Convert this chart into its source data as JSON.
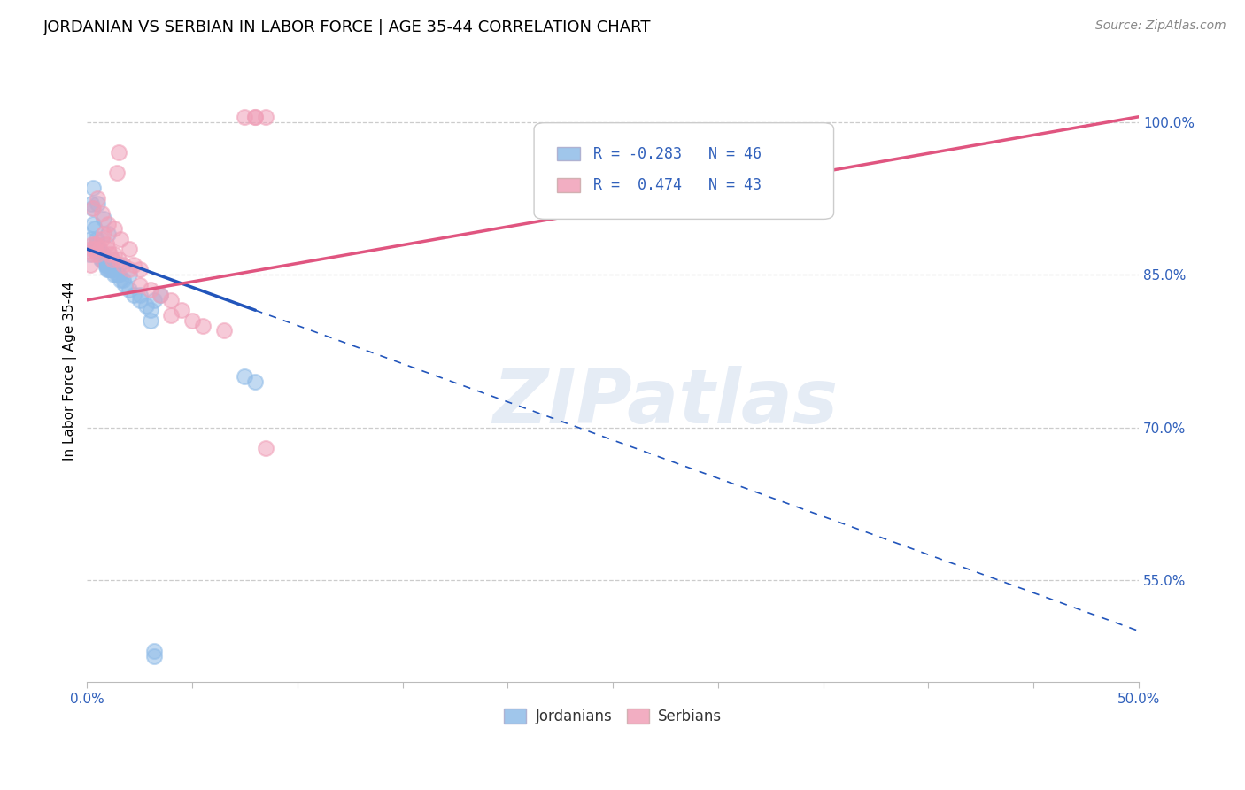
{
  "title": "JORDANIAN VS SERBIAN IN LABOR FORCE | AGE 35-44 CORRELATION CHART",
  "source": "Source: ZipAtlas.com",
  "ylabel_label": "In Labor Force | Age 35-44",
  "x_ticks_major": [
    0.0,
    5.0,
    10.0,
    15.0,
    20.0,
    25.0,
    30.0,
    35.0,
    40.0,
    45.0,
    50.0
  ],
  "x_tick_major_labels": [
    "0.0%",
    "",
    "",
    "",
    "",
    "",
    "",
    "",
    "",
    "",
    "50.0%"
  ],
  "y_ticks": [
    55.0,
    70.0,
    85.0,
    100.0
  ],
  "y_tick_labels": [
    "55.0%",
    "70.0%",
    "85.0%",
    "100.0%"
  ],
  "xlim": [
    0.0,
    50.0
  ],
  "ylim": [
    45.0,
    106.0
  ],
  "blue_R": -0.283,
  "blue_N": 46,
  "pink_R": 0.474,
  "pink_N": 43,
  "legend_label_blue": "Jordanians",
  "legend_label_pink": "Serbians",
  "blue_color": "#90bce8",
  "pink_color": "#f0a0b8",
  "blue_line_color": "#2255bb",
  "pink_line_color": "#e05580",
  "watermark_text": "ZIPatlas",
  "title_fontsize": 13,
  "axis_label_fontsize": 11,
  "tick_fontsize": 11,
  "source_fontsize": 10,
  "blue_scatter_x": [
    0.1,
    0.15,
    0.2,
    0.25,
    0.3,
    0.35,
    0.4,
    0.45,
    0.5,
    0.55,
    0.6,
    0.65,
    0.7,
    0.75,
    0.8,
    0.85,
    0.9,
    0.95,
    1.0,
    1.1,
    1.2,
    1.3,
    1.4,
    1.5,
    1.6,
    1.7,
    1.8,
    2.0,
    2.2,
    2.5,
    2.8,
    3.0,
    3.2,
    3.5,
    0.3,
    0.5,
    0.8,
    1.0,
    1.5,
    2.0,
    2.5,
    3.0,
    7.5,
    8.0,
    3.2,
    3.2
  ],
  "blue_scatter_y": [
    87.0,
    88.5,
    92.0,
    91.5,
    90.0,
    89.5,
    88.0,
    88.5,
    87.5,
    87.5,
    87.0,
    86.5,
    86.5,
    87.0,
    86.5,
    86.0,
    86.0,
    85.5,
    85.5,
    85.5,
    85.5,
    85.0,
    85.0,
    85.0,
    84.5,
    84.5,
    84.0,
    83.5,
    83.0,
    82.5,
    82.0,
    81.5,
    82.5,
    83.0,
    93.5,
    92.0,
    90.5,
    89.0,
    86.0,
    85.0,
    83.0,
    80.5,
    75.0,
    74.5,
    47.5,
    48.0
  ],
  "pink_scatter_x": [
    0.15,
    0.2,
    0.25,
    0.3,
    0.35,
    0.4,
    0.5,
    0.6,
    0.7,
    0.8,
    0.9,
    1.0,
    1.1,
    1.2,
    1.3,
    1.5,
    1.7,
    2.0,
    2.2,
    2.5,
    0.3,
    0.5,
    0.7,
    1.0,
    1.3,
    1.6,
    2.0,
    1.4,
    1.5,
    2.5,
    3.0,
    3.5,
    4.0,
    4.0,
    4.5,
    5.0,
    5.5,
    6.5,
    7.5,
    8.0,
    8.5,
    8.5,
    8.0
  ],
  "pink_scatter_y": [
    86.0,
    87.5,
    88.0,
    87.0,
    87.5,
    88.0,
    87.0,
    87.5,
    88.5,
    89.0,
    88.0,
    87.5,
    87.0,
    86.5,
    87.0,
    86.5,
    86.0,
    85.5,
    86.0,
    85.5,
    91.5,
    92.5,
    91.0,
    90.0,
    89.5,
    88.5,
    87.5,
    95.0,
    97.0,
    84.0,
    83.5,
    83.0,
    82.5,
    81.0,
    81.5,
    80.5,
    80.0,
    79.5,
    100.5,
    100.5,
    100.5,
    68.0,
    100.5
  ]
}
